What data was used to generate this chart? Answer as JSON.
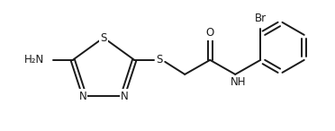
{
  "bg_color": "#ffffff",
  "line_color": "#1a1a1a",
  "text_color": "#1a1a1a",
  "line_width": 1.4,
  "font_size": 8.5,
  "figsize": [
    3.72,
    1.46
  ],
  "dpi": 100,
  "xlim": [
    0,
    372
  ],
  "ylim": [
    0,
    146
  ]
}
